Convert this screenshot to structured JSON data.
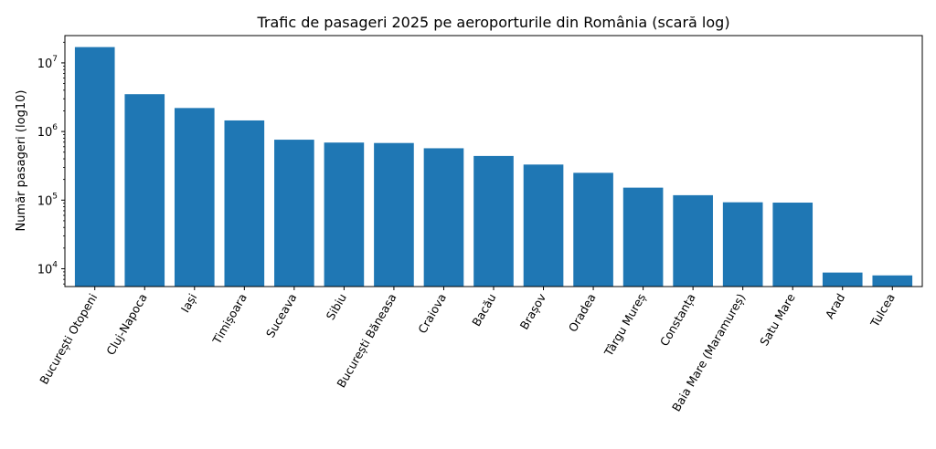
{
  "chart_data": {
    "type": "bar",
    "title": "Trafic de pasageri 2025 pe aeroporturile din România (scară log)",
    "xlabel": "",
    "ylabel": "Număr pasageri (log10)",
    "yscale": "log",
    "ylim": [
      5500,
      25000000
    ],
    "y_ticks": [
      {
        "base": "10",
        "exp": "4",
        "value": 10000
      },
      {
        "base": "10",
        "exp": "5",
        "value": 100000
      },
      {
        "base": "10",
        "exp": "6",
        "value": 1000000
      },
      {
        "base": "10",
        "exp": "7",
        "value": 10000000
      }
    ],
    "bar_color": "#1f77b4",
    "grid": false,
    "categories": [
      "București Otopeni",
      "Cluj-Napoca",
      "Iași",
      "Timișoara",
      "Suceava",
      "Sibiu",
      "București Băneasa",
      "Craiova",
      "Bacău",
      "Brașov",
      "Oradea",
      "Târgu Mureș",
      "Constanța",
      "Baia Mare (Maramureș)",
      "Satu Mare",
      "Arad",
      "Tulcea"
    ],
    "values": [
      17000000,
      3500000,
      2200000,
      1450000,
      760000,
      690000,
      680000,
      570000,
      440000,
      330000,
      250000,
      152000,
      118000,
      93000,
      92000,
      8800,
      8000
    ]
  }
}
